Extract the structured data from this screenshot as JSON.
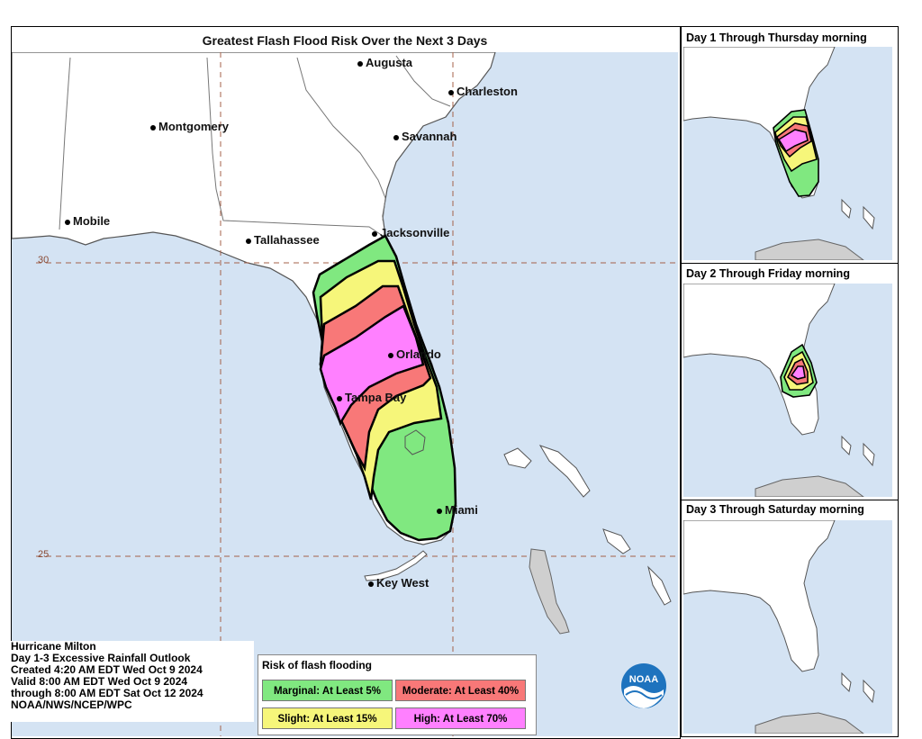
{
  "map": {
    "title": "Greatest Flash Flood Risk Over the Next 3 Days",
    "cities": {
      "augusta": "Augusta",
      "charleston": "Charleston",
      "montgomery": "Montgomery",
      "savannah": "Savannah",
      "mobile": "Mobile",
      "tallahassee": "Tallahassee",
      "jacksonville": "Jacksonville",
      "orlando": "Orlando",
      "tampa_bay": "Tampa Bay",
      "miami": "Miami",
      "key_west": "Key West"
    },
    "lat_labels": {
      "lat30": "30",
      "lat25": "25"
    }
  },
  "info": {
    "line1": "Hurricane Milton",
    "line2": "Day 1-3 Excessive Rainfall Outlook",
    "line3": "Created 4:20 AM EDT Wed Oct 9 2024",
    "line4": "Valid 8:00 AM EDT Wed Oct 9 2024",
    "line5": "through 8:00 AM EDT Sat Oct 12 2024",
    "line6": "NOAA/NWS/NCEP/WPC"
  },
  "legend": {
    "title": "Risk of flash flooding",
    "marginal": "Marginal: At Least 5%",
    "moderate": "Moderate: At Least 40%",
    "slight": "Slight: At Least 15%",
    "high": "High: At Least 70%"
  },
  "panels": {
    "day1": "Day 1 Through Thursday morning",
    "day2": "Day 2 Through Friday morning",
    "day3": "Day 3 Through Saturday morning"
  },
  "logo_text": "NOAA",
  "colors": {
    "water": "#d4e3f3",
    "land": "#ffffff",
    "marginal": "#80e880",
    "slight": "#f6f67a",
    "moderate": "#f87878",
    "high": "#ff80ff",
    "cuba": "#cfcfcf"
  }
}
